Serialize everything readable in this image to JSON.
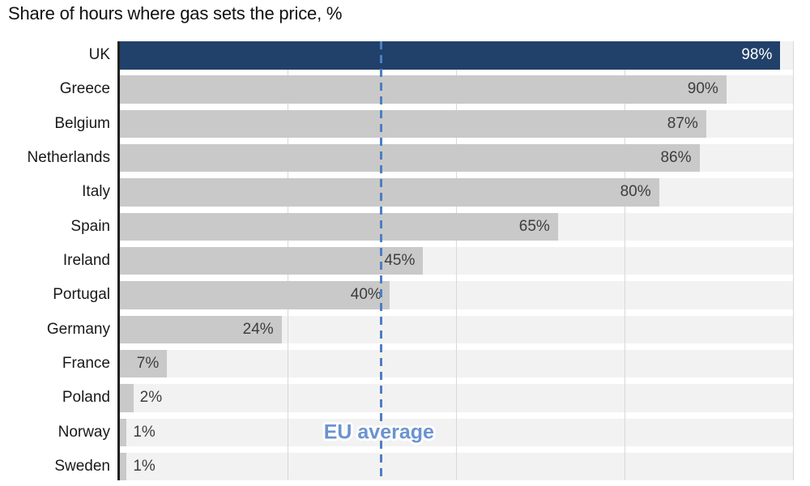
{
  "chart_data": {
    "type": "bar",
    "orientation": "horizontal",
    "title": "Share of hours where gas sets the price, %",
    "categories": [
      "UK",
      "Greece",
      "Belgium",
      "Netherlands",
      "Italy",
      "Spain",
      "Ireland",
      "Portugal",
      "Germany",
      "France",
      "Poland",
      "Norway",
      "Sweden"
    ],
    "values": [
      98,
      90,
      87,
      86,
      80,
      65,
      45,
      40,
      24,
      7,
      2,
      1,
      1
    ],
    "value_labels": [
      "98%",
      "90%",
      "87%",
      "86%",
      "80%",
      "65%",
      "45%",
      "40%",
      "24%",
      "7%",
      "2%",
      "1%",
      "1%"
    ],
    "highlight_category": "UK",
    "xlim": [
      0,
      100
    ],
    "gridlines_pct": [
      25,
      50,
      75,
      100
    ],
    "grid": "vertical-only",
    "legend": "none",
    "annotation": {
      "label": "EU average",
      "position_pct": 38.8
    },
    "colors": {
      "highlight_bar": "#21416a",
      "bar": "#c9c9c9",
      "row_band": "#f2f2f2",
      "gridline": "#d8d8d8",
      "axis": "#1f1f1f",
      "annotation_line": "#4d7fc2",
      "annotation_text": "#6b93cf",
      "value_label": "#3d3d3d",
      "value_label_on_highlight": "#ffffff",
      "country_label": "#191919",
      "title": "#111111"
    }
  }
}
